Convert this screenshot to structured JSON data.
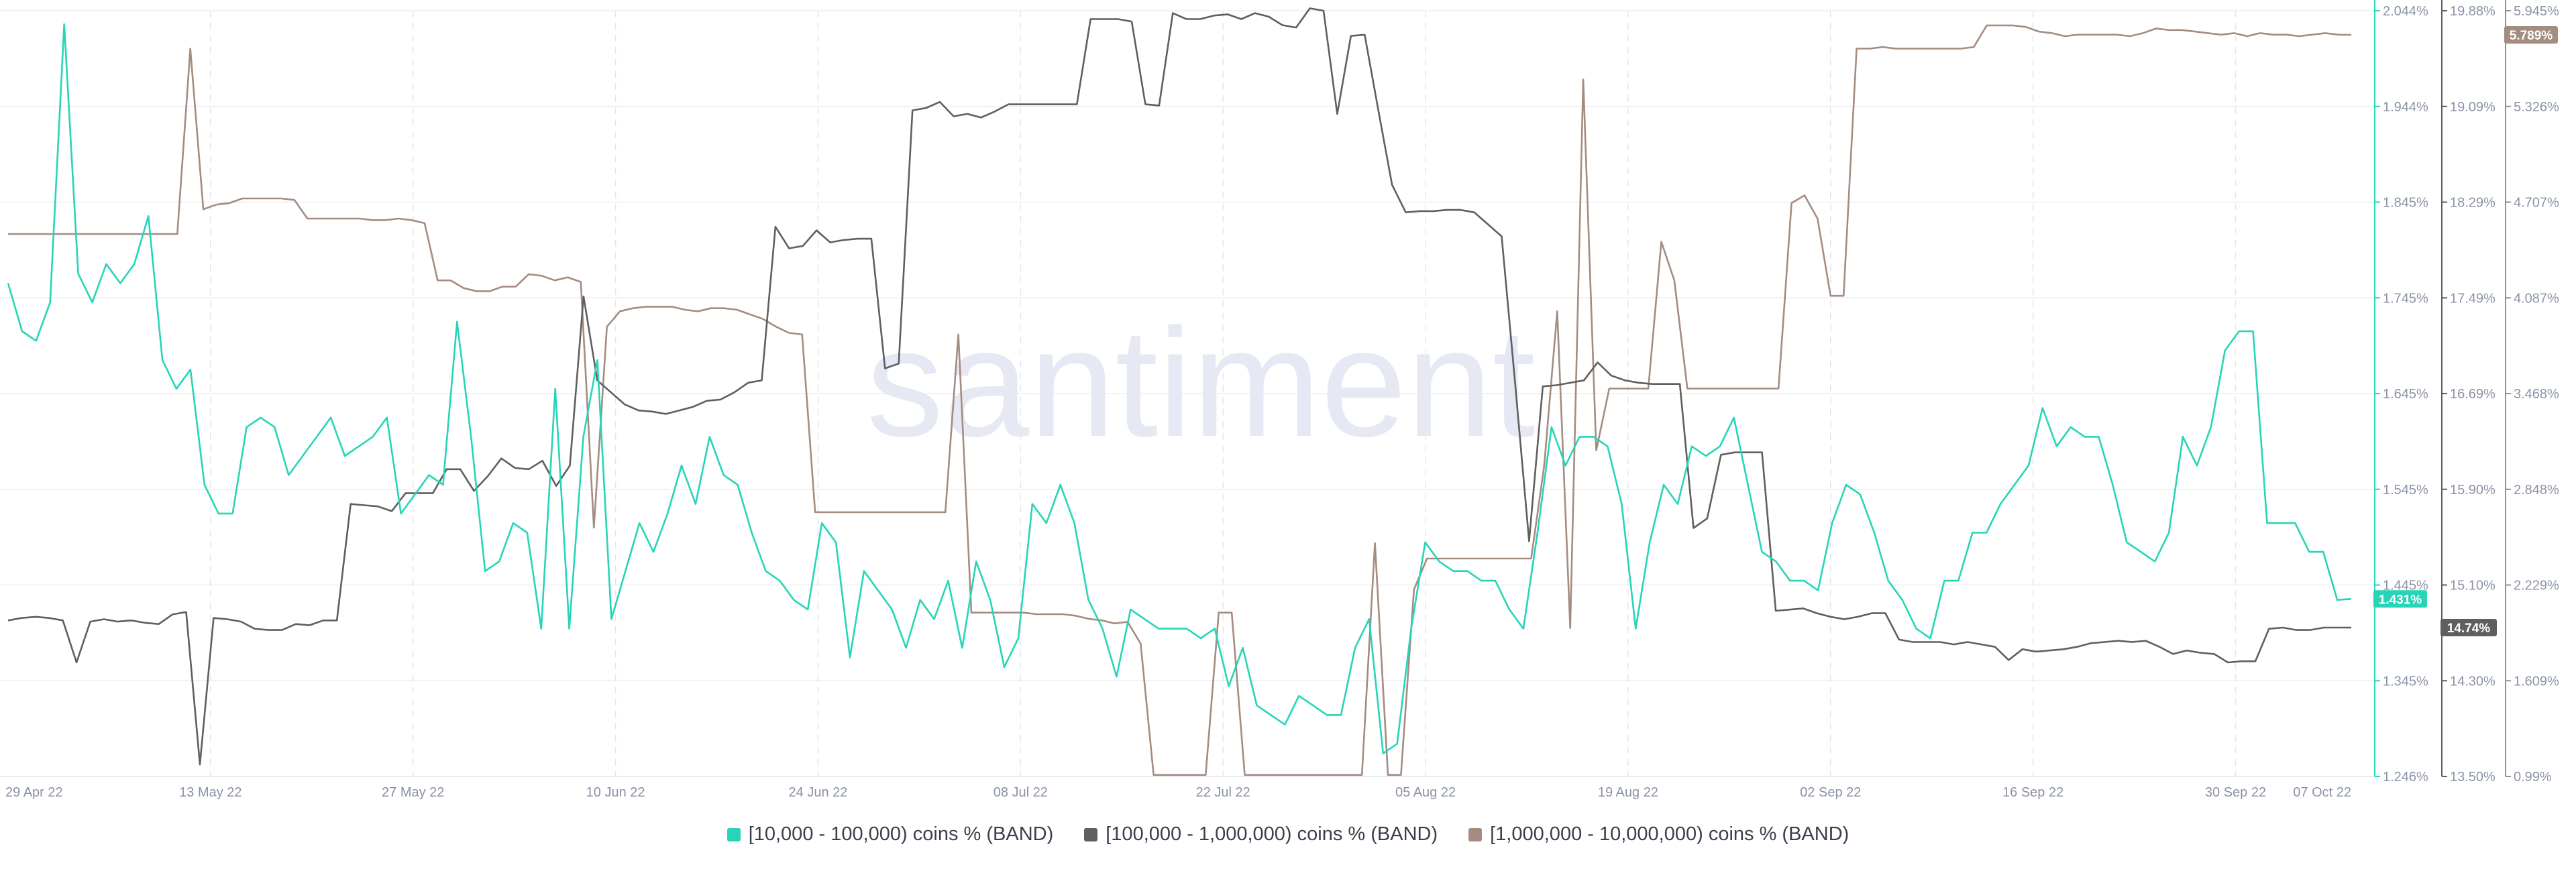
{
  "chart_data": {
    "type": "line",
    "watermark": "santiment",
    "x_axis": {
      "ticks": [
        "29 Apr 22",
        "13 May 22",
        "27 May 22",
        "10 Jun 22",
        "24 Jun 22",
        "08 Jul 22",
        "22 Jul 22",
        "05 Aug 22",
        "19 Aug 22",
        "02 Sep 22",
        "16 Sep 22",
        "30 Sep 22",
        "07 Oct 22"
      ],
      "range": [
        0,
        162
      ]
    },
    "y_axes": [
      {
        "id": "left",
        "color": "#26d5b8",
        "min": 1.246,
        "max": 2.044,
        "ticks": [
          "2.044%",
          "1.944%",
          "1.845%",
          "1.745%",
          "1.645%",
          "1.545%",
          "1.445%",
          "1.345%",
          "1.246%"
        ],
        "current": "1.431%"
      },
      {
        "id": "mid",
        "color": "#5f5f5f",
        "min": 13.5,
        "max": 19.88,
        "ticks": [
          "19.88%",
          "19.09%",
          "18.29%",
          "17.49%",
          "16.69%",
          "15.90%",
          "15.10%",
          "14.30%",
          "13.50%"
        ],
        "current": "14.74%"
      },
      {
        "id": "right",
        "color": "#a48c80",
        "min": 0.99,
        "max": 5.945,
        "ticks": [
          "5.945%",
          "5.326%",
          "4.707%",
          "4.087%",
          "3.468%",
          "2.848%",
          "2.229%",
          "1.609%",
          "0.99%"
        ],
        "current": "5.789%"
      }
    ],
    "grid": true,
    "legend_position": "bottom-center",
    "series": [
      {
        "name": "[10,000 - 100,000) coins % (BAND)",
        "color": "#26d5b8",
        "axis": "left",
        "values": [
          1.76,
          1.71,
          1.7,
          1.74,
          2.03,
          1.77,
          1.74,
          1.78,
          1.76,
          1.78,
          1.83,
          1.68,
          1.65,
          1.67,
          1.55,
          1.52,
          1.52,
          1.61,
          1.62,
          1.61,
          1.56,
          1.58,
          1.6,
          1.62,
          1.58,
          1.59,
          1.6,
          1.62,
          1.52,
          1.54,
          1.56,
          1.55,
          1.72,
          1.6,
          1.46,
          1.47,
          1.51,
          1.5,
          1.4,
          1.65,
          1.4,
          1.6,
          1.68,
          1.41,
          1.46,
          1.51,
          1.48,
          1.52,
          1.57,
          1.53,
          1.6,
          1.56,
          1.55,
          1.5,
          1.46,
          1.45,
          1.43,
          1.42,
          1.51,
          1.49,
          1.37,
          1.46,
          1.44,
          1.42,
          1.38,
          1.43,
          1.41,
          1.45,
          1.38,
          1.47,
          1.43,
          1.36,
          1.39,
          1.53,
          1.51,
          1.55,
          1.51,
          1.43,
          1.4,
          1.35,
          1.42,
          1.41,
          1.4,
          1.4,
          1.4,
          1.39,
          1.4,
          1.34,
          1.38,
          1.32,
          1.31,
          1.3,
          1.33,
          1.32,
          1.31,
          1.31,
          1.38,
          1.41,
          1.27,
          1.28,
          1.4,
          1.49,
          1.47,
          1.46,
          1.46,
          1.45,
          1.45,
          1.42,
          1.4,
          1.5,
          1.61,
          1.57,
          1.6,
          1.6,
          1.59,
          1.53,
          1.4,
          1.49,
          1.55,
          1.53,
          1.59,
          1.58,
          1.59,
          1.62,
          1.55,
          1.48,
          1.47,
          1.45,
          1.45,
          1.44,
          1.51,
          1.55,
          1.54,
          1.5,
          1.45,
          1.43,
          1.4,
          1.39,
          1.45,
          1.45,
          1.5,
          1.5,
          1.53,
          1.55,
          1.57,
          1.63,
          1.59,
          1.61,
          1.6,
          1.6,
          1.55,
          1.49,
          1.48,
          1.47,
          1.5,
          1.6,
          1.57,
          1.61,
          1.69,
          1.71,
          1.71,
          1.51,
          1.51,
          1.51,
          1.48,
          1.48,
          1.43,
          1.431
        ]
      },
      {
        "name": "[100,000  - 1,000,000) coins % (BAND)",
        "color": "#5f5f5f",
        "axis": "mid",
        "values": [
          14.8,
          14.82,
          14.83,
          14.82,
          14.8,
          14.45,
          14.79,
          14.81,
          14.79,
          14.8,
          14.78,
          14.77,
          14.85,
          14.87,
          13.6,
          14.82,
          14.81,
          14.79,
          14.73,
          14.72,
          14.72,
          14.77,
          14.76,
          14.8,
          14.8,
          15.77,
          15.76,
          15.75,
          15.71,
          15.86,
          15.86,
          15.86,
          16.06,
          16.06,
          15.88,
          16.0,
          16.15,
          16.07,
          16.06,
          16.13,
          15.92,
          16.09,
          17.5,
          16.8,
          16.7,
          16.6,
          16.55,
          16.54,
          16.52,
          16.55,
          16.58,
          16.63,
          16.64,
          16.7,
          16.78,
          16.8,
          18.08,
          17.9,
          17.92,
          18.05,
          17.95,
          17.97,
          17.98,
          17.98,
          16.9,
          16.94,
          19.05,
          19.07,
          19.12,
          19.0,
          19.02,
          18.99,
          19.04,
          19.1,
          19.1,
          19.1,
          19.1,
          19.1,
          19.1,
          19.81,
          19.81,
          19.81,
          19.79,
          19.1,
          19.09,
          19.86,
          19.81,
          19.81,
          19.84,
          19.85,
          19.81,
          19.86,
          19.83,
          19.76,
          19.74,
          19.9,
          19.88,
          19.02,
          19.67,
          19.68,
          19.05,
          18.43,
          18.2,
          18.21,
          18.21,
          18.22,
          18.22,
          18.2,
          18.1,
          18.0,
          16.75,
          15.46,
          16.75,
          16.76,
          16.78,
          16.8,
          16.95,
          16.84,
          16.8,
          16.78,
          16.77,
          16.77,
          16.77,
          15.57,
          15.65,
          16.18,
          16.2,
          16.2,
          16.2,
          14.88,
          14.89,
          14.9,
          14.86,
          14.83,
          14.81,
          14.83,
          14.86,
          14.86,
          14.64,
          14.62,
          14.62,
          14.62,
          14.6,
          14.62,
          14.6,
          14.58,
          14.47,
          14.56,
          14.54,
          14.55,
          14.56,
          14.58,
          14.61,
          14.62,
          14.63,
          14.62,
          14.63,
          14.58,
          14.52,
          14.55,
          14.53,
          14.52,
          14.45,
          14.46,
          14.46,
          14.73,
          14.74,
          14.72,
          14.72,
          14.74,
          14.74,
          14.74
        ]
      },
      {
        "name": "[1,000,000 - 10,000,000) coins % (BAND)",
        "color": "#a48c80",
        "axis": "right",
        "values": [
          4.5,
          4.5,
          4.5,
          4.5,
          4.5,
          4.5,
          4.5,
          4.5,
          4.5,
          4.5,
          4.5,
          4.5,
          4.5,
          4.5,
          5.7,
          4.66,
          4.69,
          4.7,
          4.73,
          4.73,
          4.73,
          4.73,
          4.72,
          4.6,
          4.6,
          4.6,
          4.6,
          4.6,
          4.59,
          4.59,
          4.6,
          4.59,
          4.57,
          4.2,
          4.2,
          4.15,
          4.13,
          4.13,
          4.16,
          4.16,
          4.24,
          4.23,
          4.2,
          4.22,
          4.19,
          2.6,
          3.9,
          4.0,
          4.02,
          4.03,
          4.03,
          4.03,
          4.01,
          4.0,
          4.02,
          4.02,
          4.01,
          3.98,
          3.95,
          3.9,
          3.86,
          3.85,
          2.7,
          2.7,
          2.7,
          2.7,
          2.7,
          2.7,
          2.7,
          2.7,
          2.7,
          2.7,
          2.7,
          3.85,
          2.05,
          2.05,
          2.05,
          2.05,
          2.05,
          2.04,
          2.04,
          2.04,
          2.03,
          2.01,
          2.0,
          1.98,
          1.99,
          1.85,
          1.0,
          1.0,
          1.0,
          1.0,
          1.0,
          2.05,
          2.05,
          1.0,
          1.0,
          1.0,
          1.0,
          1.0,
          1.0,
          1.0,
          1.0,
          1.0,
          1.0,
          2.5,
          1.0,
          1.0,
          2.2,
          2.4,
          2.4,
          2.4,
          2.4,
          2.4,
          2.4,
          2.4,
          2.4,
          2.4,
          3.0,
          4.0,
          1.95,
          5.5,
          3.1,
          3.5,
          3.5,
          3.5,
          3.5,
          4.45,
          4.2,
          3.5,
          3.5,
          3.5,
          3.5,
          3.5,
          3.5,
          3.5,
          3.5,
          4.7,
          4.75,
          4.6,
          4.1,
          4.1,
          5.7,
          5.7,
          5.71,
          5.7,
          5.7,
          5.7,
          5.7,
          5.7,
          5.7,
          5.71,
          5.85,
          5.85,
          5.85,
          5.84,
          5.81,
          5.8,
          5.78,
          5.79,
          5.79,
          5.79,
          5.79,
          5.78,
          5.8,
          5.83,
          5.82,
          5.82,
          5.81,
          5.8,
          5.79,
          5.8,
          5.78,
          5.8,
          5.79,
          5.79,
          5.78,
          5.79,
          5.8,
          5.79,
          5.789
        ]
      }
    ]
  },
  "legend": {
    "item1": "[10,000 - 100,000) coins % (BAND)",
    "item2": "[100,000  - 1,000,000) coins % (BAND)",
    "item3": "[1,000,000 - 10,000,000) coins % (BAND)"
  }
}
